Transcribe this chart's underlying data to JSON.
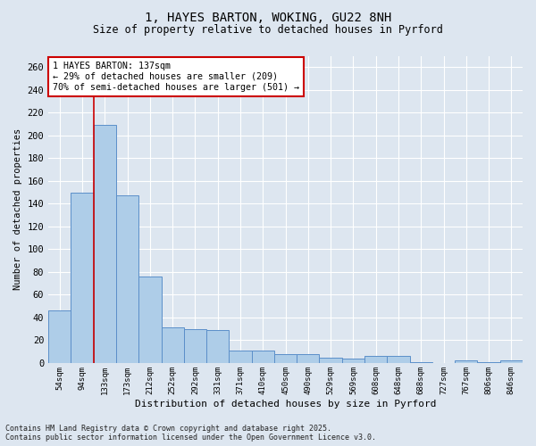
{
  "title1": "1, HAYES BARTON, WOKING, GU22 8NH",
  "title2": "Size of property relative to detached houses in Pyrford",
  "xlabel": "Distribution of detached houses by size in Pyrford",
  "ylabel": "Number of detached properties",
  "categories": [
    "54sqm",
    "94sqm",
    "133sqm",
    "173sqm",
    "212sqm",
    "252sqm",
    "292sqm",
    "331sqm",
    "371sqm",
    "410sqm",
    "450sqm",
    "490sqm",
    "529sqm",
    "569sqm",
    "608sqm",
    "648sqm",
    "688sqm",
    "727sqm",
    "767sqm",
    "806sqm",
    "846sqm"
  ],
  "values": [
    46,
    150,
    209,
    147,
    76,
    31,
    30,
    29,
    11,
    11,
    8,
    8,
    5,
    4,
    6,
    6,
    1,
    0,
    2,
    1,
    2
  ],
  "bar_color": "#aecde8",
  "bar_edge_color": "#5b8fc9",
  "vline_x": 1.5,
  "annotation_text": "1 HAYES BARTON: 137sqm\n← 29% of detached houses are smaller (209)\n70% of semi-detached houses are larger (501) →",
  "annotation_box_color": "#ffffff",
  "annotation_edge_color": "#cc0000",
  "vline_color": "#cc0000",
  "background_color": "#dde6f0",
  "grid_color": "#ffffff",
  "ylim": [
    0,
    270
  ],
  "yticks": [
    0,
    20,
    40,
    60,
    80,
    100,
    120,
    140,
    160,
    180,
    200,
    220,
    240,
    260
  ],
  "footer1": "Contains HM Land Registry data © Crown copyright and database right 2025.",
  "footer2": "Contains public sector information licensed under the Open Government Licence v3.0."
}
